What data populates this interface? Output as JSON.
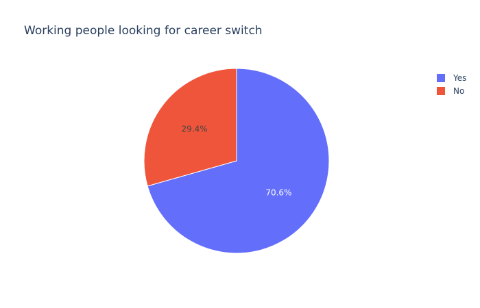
{
  "chart_data": {
    "type": "pie",
    "title": "Working people looking for career switch",
    "slices": [
      {
        "label": "Yes",
        "value": 70.6,
        "text": "70.6%",
        "color": "#636efa",
        "text_color": "#ffffff"
      },
      {
        "label": "No",
        "value": 29.4,
        "text": "29.4%",
        "color": "#ef553b",
        "text_color": "#444444"
      }
    ],
    "direction": "clockwise",
    "start": "top",
    "legend": {
      "placement": "top-right",
      "entries": [
        "Yes",
        "No"
      ]
    }
  }
}
